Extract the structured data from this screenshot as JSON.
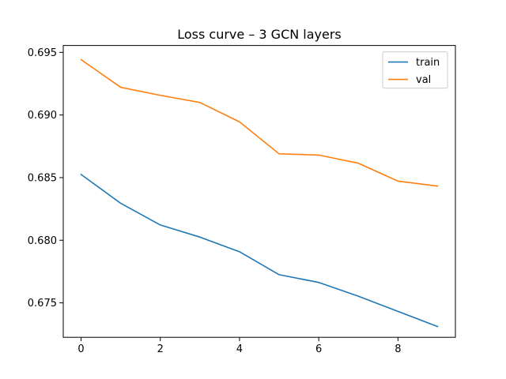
{
  "chart_data": {
    "type": "line",
    "title": "Loss curve – 3 GCN layers",
    "xlabel": "",
    "ylabel": "",
    "x": [
      0,
      1,
      2,
      3,
      4,
      5,
      6,
      7,
      8,
      9
    ],
    "xlim": [
      -0.45,
      9.45
    ],
    "ylim": [
      0.67225,
      0.69555
    ],
    "xticks": [
      0,
      2,
      4,
      6,
      8
    ],
    "xtick_labels": [
      "0",
      "2",
      "4",
      "6",
      "8"
    ],
    "yticks": [
      0.675,
      0.68,
      0.685,
      0.69,
      0.695
    ],
    "ytick_labels": [
      "0.675",
      "0.680",
      "0.685",
      "0.690",
      "0.695"
    ],
    "grid": false,
    "legend_position": "top-right",
    "series": [
      {
        "name": "train",
        "color": "#1f77b4",
        "values": [
          0.68525,
          0.68295,
          0.68122,
          0.68025,
          0.67908,
          0.67725,
          0.67663,
          0.67553,
          0.67432,
          0.67311
        ]
      },
      {
        "name": "val",
        "color": "#ff7f0e",
        "values": [
          0.69442,
          0.69221,
          0.69157,
          0.691,
          0.68945,
          0.6869,
          0.6868,
          0.68615,
          0.68472,
          0.68432
        ]
      }
    ]
  }
}
